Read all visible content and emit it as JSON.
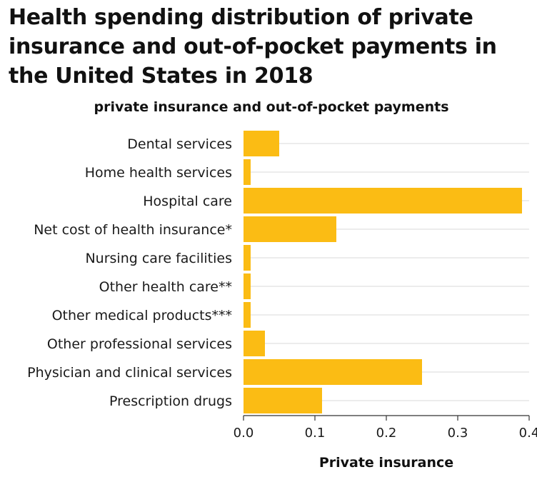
{
  "chart_data": {
    "type": "bar",
    "orientation": "horizontal",
    "title": "Health spending distribution of private insurance and out-of-pocket payments in the United States in 2018",
    "subtitle": "private insurance and out-of-pocket payments",
    "xlabel": "Private insurance",
    "ylabel": "",
    "xlim": [
      0,
      0.4
    ],
    "x_ticks": [
      "0.0",
      "0.1",
      "0.2",
      "0.3",
      "0.4"
    ],
    "grid": true,
    "categories": [
      "Dental services",
      "Home health services",
      "Hospital care",
      "Net cost of health insurance*",
      "Nursing care facilities",
      "Other health care**",
      "Other medical products***",
      "Other professional services",
      "Physician and clinical services",
      "Prescription drugs"
    ],
    "values": [
      0.05,
      0.01,
      0.39,
      0.13,
      0.01,
      0.01,
      0.01,
      0.03,
      0.25,
      0.11
    ],
    "bar_color": "#fbbc14"
  }
}
